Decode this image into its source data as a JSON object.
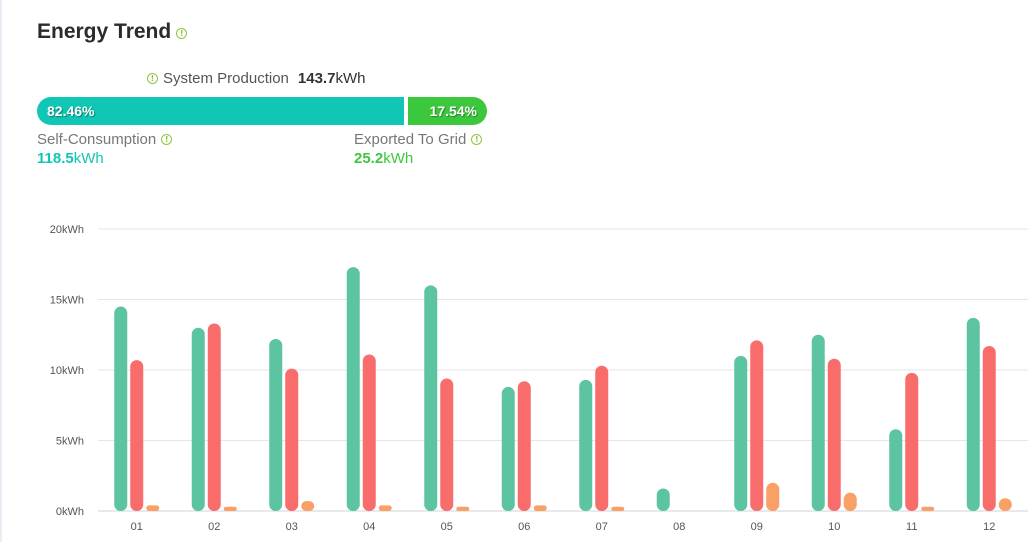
{
  "title": "Energy Trend",
  "summary": {
    "production_label": "System Production",
    "production_value": "143.7",
    "production_unit": "kWh",
    "self_pct": "82.46%",
    "export_pct": "17.54%",
    "self_label": "Self-Consumption",
    "self_value": "118.5",
    "self_unit": "kWh",
    "export_label": "Exported To Grid",
    "export_value": "25.2",
    "export_unit": "kWh"
  },
  "colors": {
    "self_bar": "#10c6b4",
    "export_bar": "#3cc83c",
    "series_1": "#5cc4a0",
    "series_2": "#f96c6c",
    "series_3": "#f9a066"
  },
  "chart_data": {
    "type": "bar",
    "categories": [
      "01",
      "02",
      "03",
      "04",
      "05",
      "06",
      "07",
      "08",
      "09",
      "10",
      "11",
      "12"
    ],
    "series": [
      {
        "values": [
          14.5,
          13.0,
          12.2,
          17.3,
          16.0,
          8.8,
          9.3,
          1.6,
          11.0,
          12.5,
          5.8,
          13.7
        ]
      },
      {
        "values": [
          10.7,
          13.3,
          10.1,
          11.1,
          9.4,
          9.2,
          10.3,
          0,
          12.1,
          10.8,
          9.8,
          11.7
        ]
      },
      {
        "values": [
          0.4,
          0.3,
          0.7,
          0.4,
          0.3,
          0.4,
          0.3,
          0,
          2.0,
          1.3,
          0.3,
          0.9
        ]
      }
    ],
    "y_ticks": [
      "0kWh",
      "5kWh",
      "10kWh",
      "15kWh",
      "20kWh"
    ],
    "ylim": [
      0,
      20
    ],
    "grid": true
  }
}
